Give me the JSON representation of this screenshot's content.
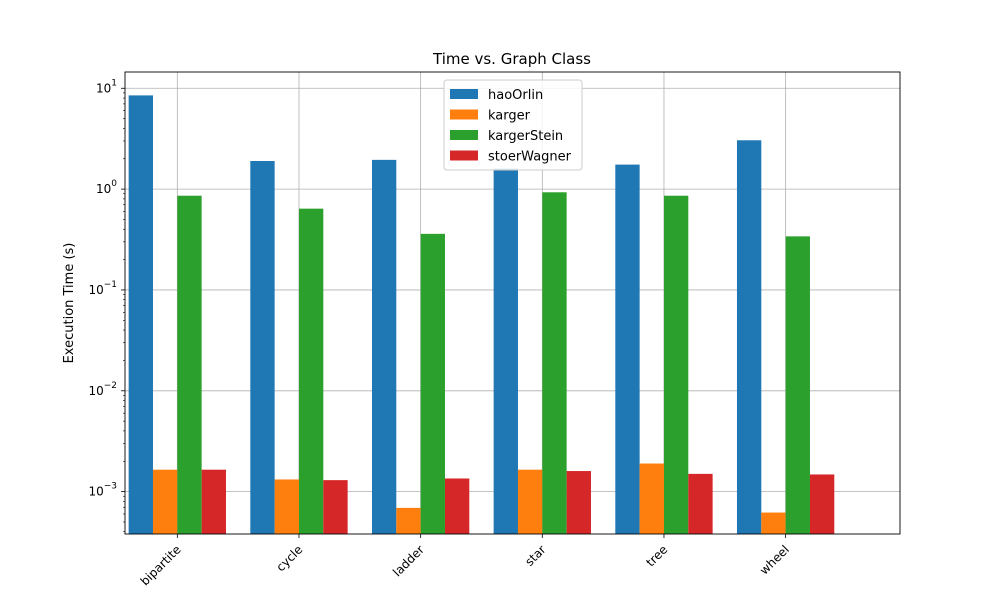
{
  "chart_data": {
    "type": "bar",
    "title": "Time vs. Graph Class",
    "xlabel": "",
    "ylabel": "Execution Time (s)",
    "yscale": "log",
    "ylim": [
      0.00038,
      14.5
    ],
    "yticks": [
      {
        "value": 0.001,
        "base": "10",
        "exp": "−3"
      },
      {
        "value": 0.01,
        "base": "10",
        "exp": "−2"
      },
      {
        "value": 0.1,
        "base": "10",
        "exp": "−1"
      },
      {
        "value": 1,
        "base": "10",
        "exp": "0"
      },
      {
        "value": 10,
        "base": "10",
        "exp": "1"
      }
    ],
    "grid": true,
    "legend_position": "top-center",
    "categories": [
      "bipartite",
      "cycle",
      "ladder",
      "star",
      "tree",
      "wheel"
    ],
    "series": [
      {
        "name": "haoOrlin",
        "color": "#1f77b4",
        "values": [
          8.5,
          1.9,
          1.95,
          1.6,
          1.75,
          3.05
        ]
      },
      {
        "name": "karger",
        "color": "#ff7f0e",
        "values": [
          0.00165,
          0.00132,
          0.00069,
          0.00165,
          0.0019,
          0.00062
        ]
      },
      {
        "name": "kargerStein",
        "color": "#2ca02c",
        "values": [
          0.86,
          0.64,
          0.36,
          0.93,
          0.86,
          0.34
        ]
      },
      {
        "name": "stoerWagner",
        "color": "#d62728",
        "values": [
          0.00165,
          0.0013,
          0.00135,
          0.0016,
          0.0015,
          0.00148
        ]
      }
    ]
  }
}
